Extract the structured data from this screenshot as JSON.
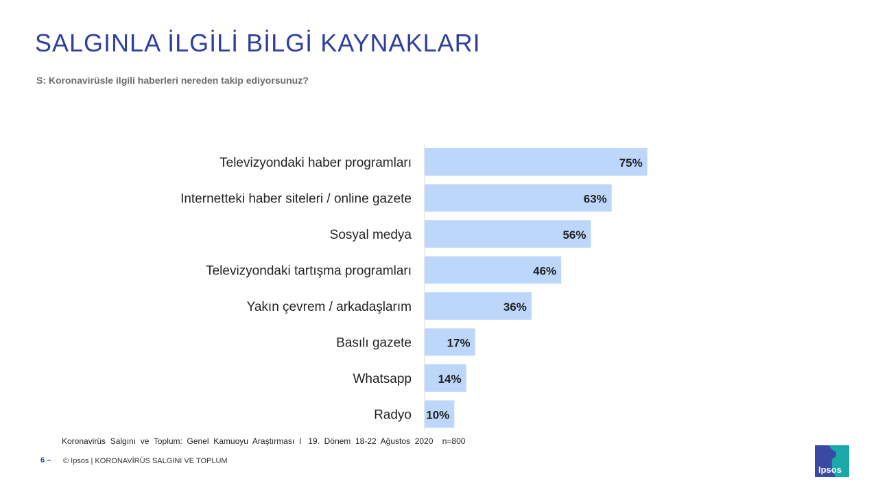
{
  "header": {
    "title": "SALGINLA İLGİLİ BİLGİ KAYNAKLARI",
    "question": "S: Koronavirüsle ilgili  haberleri nereden takip ediyorsunuz?"
  },
  "chart_data": {
    "type": "bar",
    "orientation": "horizontal",
    "categories": [
      "Televizyondaki haber programları",
      "Internetteki haber siteleri / online gazete",
      "Sosyal medya",
      "Televizyondaki tartışma programları",
      "Yakın çevrem / arkadaşlarım",
      "Basılı gazete",
      "Whatsapp",
      "Radyo"
    ],
    "values": [
      75,
      63,
      56,
      46,
      36,
      17,
      14,
      10
    ],
    "value_labels": [
      "75%",
      "63%",
      "56%",
      "46%",
      "36%",
      "17%",
      "14%",
      "10%"
    ],
    "xlim": [
      0,
      100
    ],
    "bar_color": "#bdd7fb",
    "grid": false
  },
  "footer": {
    "source": "Koronavirüs  Salgını  ve  Toplum:  Genel  Kamuoyu  Araştırması  I   19.  Dönem  18-22  Ağustos  2020    n=800",
    "page_number": "6 –",
    "copyright": "© Ipsos | KORONAVİRÜS SALGINI VE TOPLUM",
    "logo_text": "Ipsos"
  },
  "colors": {
    "title": "#2e3f9e",
    "logo_blue": "#3a49a4",
    "logo_teal": "#1aa9a8"
  }
}
